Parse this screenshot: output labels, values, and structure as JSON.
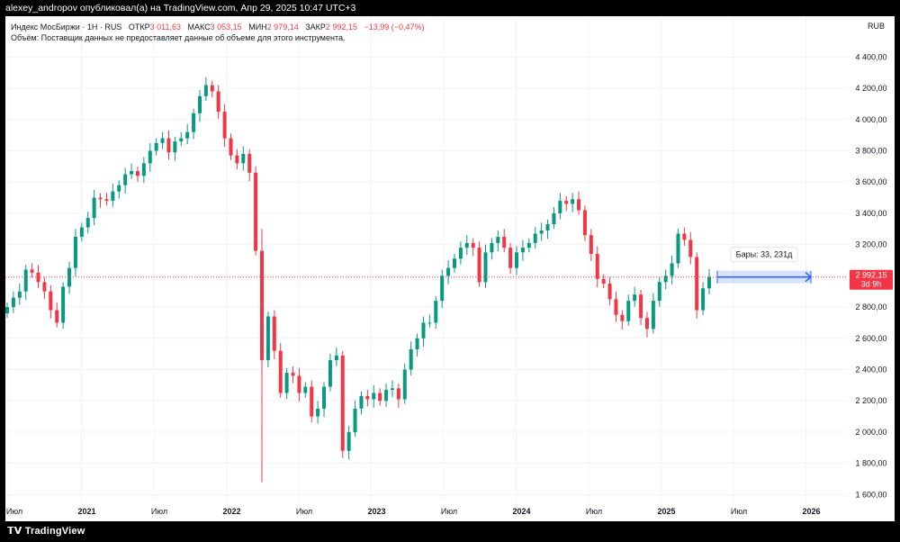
{
  "header": {
    "publish_line": "alexey_andropov опубликовал(а) на TradingView.com, Апр 29, 2025 10:47 UTC+3"
  },
  "legend": {
    "symbol": "Индекс МосБиржи · 1Н · RUS",
    "open_label": "ОТКР",
    "open_value": "3 011,63",
    "high_label": "МАКС",
    "high_value": "3 053,15",
    "low_label": "МИН",
    "low_value": "2 979,14",
    "close_label": "ЗАКР",
    "close_value": "2 992,15",
    "change": "−13,99 (−0,47%)",
    "volume_note": "Объём: Поставщик данных не предоставляет данные об объеме для этого инструмента."
  },
  "currency": "RUB",
  "footer": {
    "logo_text": "TradingView"
  },
  "colors": {
    "up": "#089981",
    "down": "#f23645",
    "grid": "#f0f3fa",
    "measure": "#2962ff"
  },
  "price_badge": {
    "value": "2 992,15",
    "countdown": "3d 9h"
  },
  "measure_label": "Бары: 33, 231д",
  "chart_data": {
    "type": "candlestick",
    "title": "Индекс МосБиржи",
    "ylim": [
      1550,
      4500
    ],
    "y_ticks": [
      "1 600,00",
      "1 800,00",
      "2 000,00",
      "2 200,00",
      "2 400,00",
      "2 600,00",
      "2 800,00",
      "3 000,00",
      "3 200,00",
      "3 400,00",
      "3 600,00",
      "3 800,00",
      "4 000,00",
      "4 200,00",
      "4 400,00"
    ],
    "y_tick_values": [
      1600,
      1800,
      2000,
      2200,
      2400,
      2600,
      2800,
      3000,
      3200,
      3400,
      3600,
      3800,
      4000,
      4200,
      4400
    ],
    "x_ticks": [
      "Июл",
      "2021",
      "Июл",
      "2022",
      "Июл",
      "2023",
      "Июл",
      "2024",
      "Июл",
      "2025",
      "Июл",
      "2026"
    ],
    "x_tick_dates": [
      "2020-07",
      "2021-01",
      "2021-07",
      "2022-01",
      "2022-07",
      "2023-01",
      "2023-07",
      "2024-01",
      "2024-07",
      "2025-01",
      "2025-07",
      "2026-01"
    ],
    "last_price": 2992.15,
    "series_close": [
      2800,
      2860,
      2900,
      3040,
      3020,
      2960,
      2900,
      2780,
      2700,
      2930,
      3050,
      3250,
      3310,
      3370,
      3500,
      3490,
      3480,
      3540,
      3580,
      3650,
      3670,
      3640,
      3720,
      3800,
      3850,
      3880,
      3790,
      3860,
      3880,
      3920,
      4040,
      4150,
      4220,
      4180,
      4050,
      3880,
      3770,
      3720,
      3780,
      3660,
      3160,
      2460,
      2740,
      2520,
      2250,
      2380,
      2360,
      2250,
      2290,
      2100,
      2150,
      2290,
      2460,
      2490,
      1880,
      2000,
      2150,
      2230,
      2210,
      2250,
      2200,
      2270,
      2280,
      2210,
      2400,
      2530,
      2600,
      2700,
      2700,
      2840,
      3000,
      3050,
      3110,
      3180,
      3210,
      3180,
      2960,
      3150,
      3210,
      3250,
      3180,
      3050,
      3150,
      3180,
      3210,
      3270,
      3290,
      3330,
      3400,
      3480,
      3460,
      3490,
      3420,
      3260,
      3140,
      2980,
      2950,
      2850,
      2750,
      2710,
      2840,
      2880,
      2730,
      2660,
      2840,
      2960,
      3000,
      3080,
      3270,
      3230,
      3120,
      2780,
      2920,
      2992
    ]
  }
}
